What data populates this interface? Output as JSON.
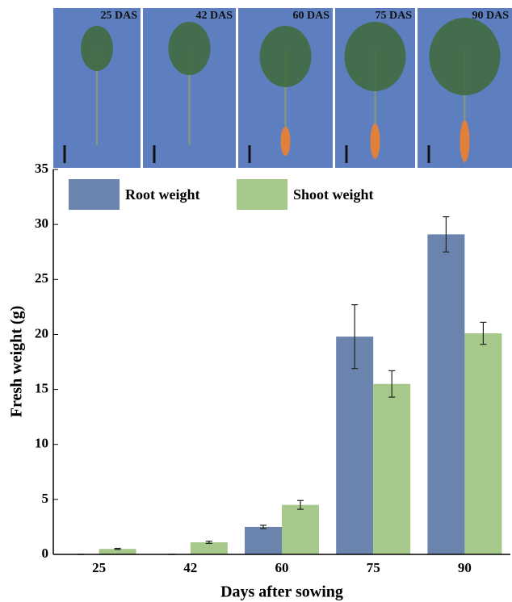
{
  "chart_data": {
    "type": "bar",
    "photo_labels": [
      "25 DAS",
      "42 DAS",
      "60 DAS",
      "75 DAS",
      "90 DAS"
    ],
    "categories": [
      "25",
      "42",
      "60",
      "75",
      "90"
    ],
    "series": [
      {
        "name": "Root weight",
        "color": "#6b84ad",
        "values": [
          0,
          0,
          2.5,
          19.8,
          29.1
        ],
        "errors": [
          0,
          0,
          0.15,
          2.9,
          1.6
        ]
      },
      {
        "name": "Shoot weight",
        "color": "#a6c88a",
        "values": [
          0.5,
          1.1,
          4.5,
          15.5,
          20.1
        ],
        "errors": [
          0.05,
          0.1,
          0.4,
          1.2,
          1.0
        ]
      }
    ],
    "ylim": [
      0,
      35
    ],
    "yticks": [
      0,
      5,
      10,
      15,
      20,
      25,
      30,
      35
    ],
    "y_label": "Fresh weight (g)",
    "x_label": "Days after sowing"
  }
}
